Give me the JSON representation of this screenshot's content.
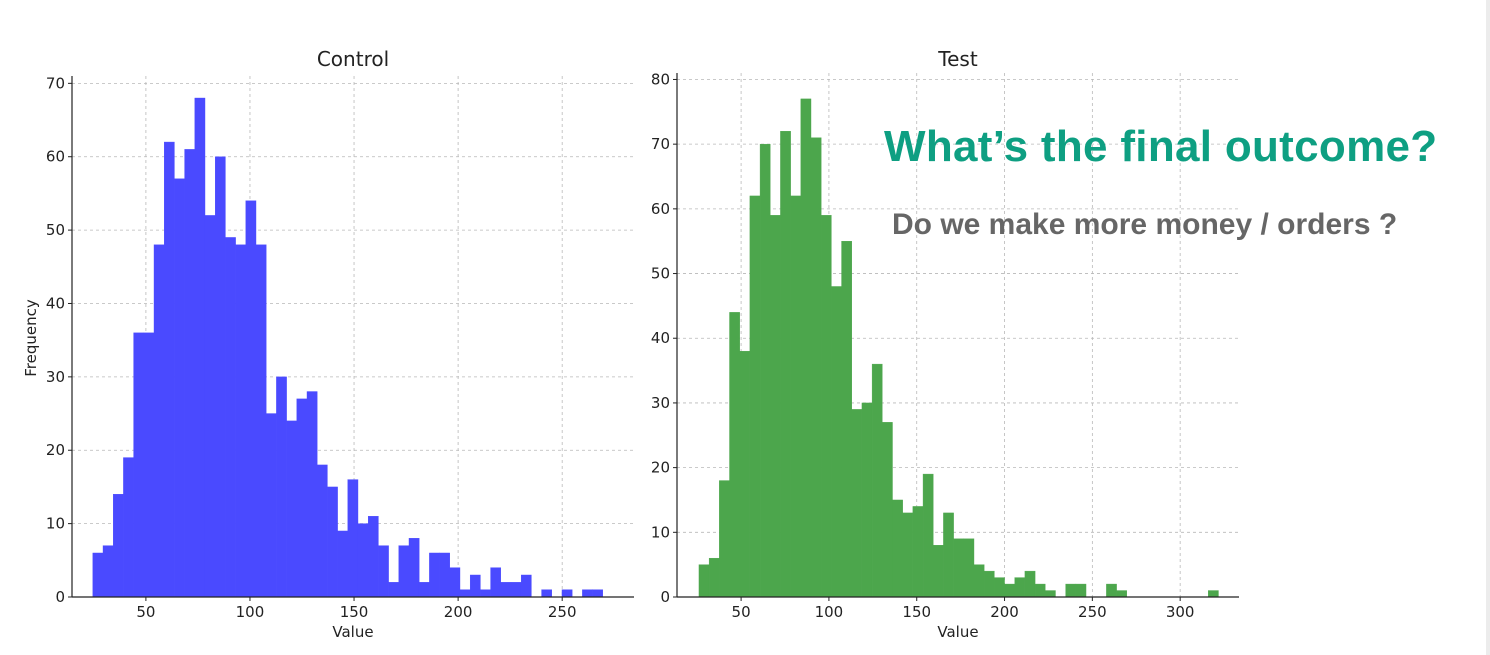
{
  "annotation": {
    "headline": "What’s the final outcome?",
    "subheadline": "Do we make more money / orders ?",
    "headline_color": "#0e9f82",
    "subheadline_color": "#666666"
  },
  "chart_data": [
    {
      "type": "bar",
      "histogram": true,
      "title": "Control",
      "xlabel": "Value",
      "ylabel": "Frequency",
      "color": "#4a4aff",
      "grid": true,
      "xlim": [
        14.5,
        284.5
      ],
      "ylim": [
        0,
        71
      ],
      "xticks": [
        50,
        100,
        150,
        200,
        250
      ],
      "yticks": [
        0,
        10,
        20,
        30,
        40,
        50,
        60,
        70
      ],
      "bin_start": 24.5,
      "bin_width": 4.9,
      "values": [
        6,
        7,
        14,
        19,
        36,
        36,
        48,
        62,
        57,
        61,
        68,
        52,
        60,
        49,
        48,
        54,
        48,
        25,
        30,
        24,
        27,
        28,
        18,
        15,
        9,
        16,
        10,
        11,
        7,
        2,
        7,
        8,
        2,
        6,
        6,
        4,
        1,
        3,
        1,
        4,
        2,
        2,
        3,
        0,
        1,
        0,
        1,
        0,
        1,
        1
      ]
    },
    {
      "type": "bar",
      "histogram": true,
      "title": "Test",
      "xlabel": "Value",
      "ylabel": "",
      "color": "#4ca64c",
      "grid": true,
      "xlim": [
        13.5,
        333.5
      ],
      "ylim": [
        0,
        81
      ],
      "xticks": [
        50,
        100,
        150,
        200,
        250,
        300
      ],
      "yticks": [
        0,
        10,
        20,
        30,
        40,
        50,
        60,
        70,
        80
      ],
      "bin_start": 26,
      "bin_width": 5.8,
      "values": [
        5,
        6,
        18,
        44,
        38,
        62,
        70,
        59,
        72,
        62,
        77,
        71,
        59,
        48,
        55,
        29,
        30,
        36,
        27,
        15,
        13,
        14,
        19,
        8,
        13,
        9,
        9,
        5,
        4,
        3,
        2,
        3,
        4,
        2,
        1,
        0,
        2,
        2,
        0,
        0,
        2,
        1,
        0,
        0,
        0,
        0,
        0,
        0,
        0,
        0,
        1
      ]
    }
  ]
}
